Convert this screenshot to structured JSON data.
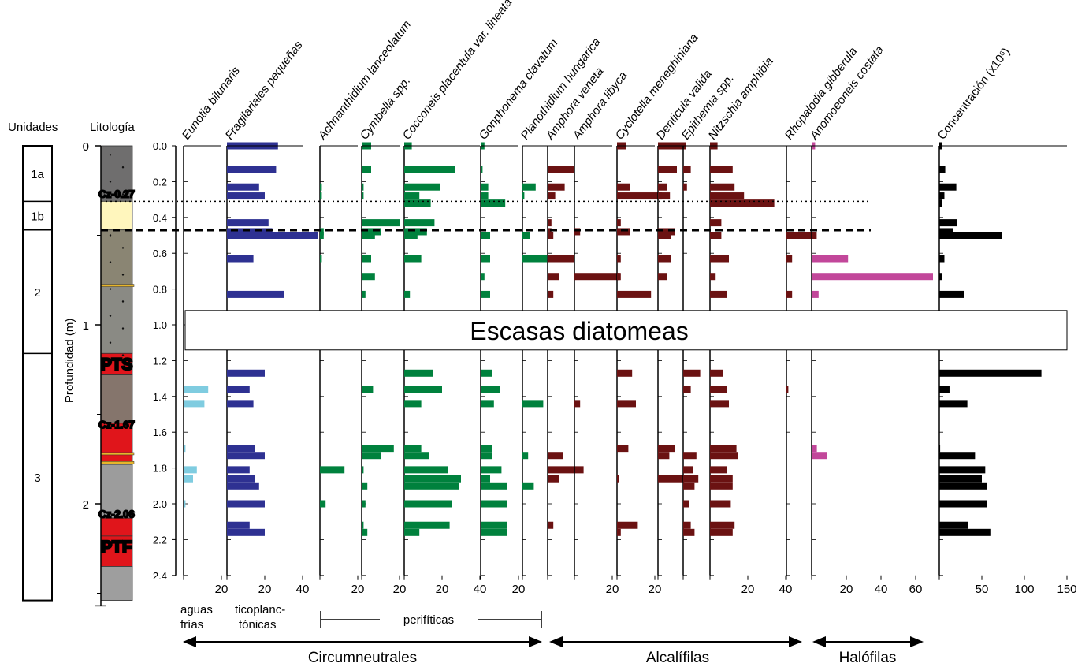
{
  "chart_data": {
    "type": "bar",
    "orientation": "horizontal",
    "depth_axis": {
      "label": "Profundidad (m)",
      "inverted": true,
      "ylim": [
        0,
        2.4
      ],
      "ticks": [
        "0.0",
        "0.2",
        "0.4",
        "0.6",
        "0.8",
        "1.0",
        "1.2",
        "1.4",
        "1.6",
        "1.8",
        "2.0",
        "2.2",
        "2.4"
      ],
      "outer_ticks": [
        "0",
        "1",
        "2"
      ]
    },
    "headers": {
      "units": "Unidades",
      "lithology": "Litología"
    },
    "units": [
      {
        "label": "1a",
        "top": 0.0,
        "bottom": 0.31
      },
      {
        "label": "1b",
        "top": 0.31,
        "bottom": 0.47
      },
      {
        "label": "2",
        "top": 0.47,
        "bottom": 1.16
      },
      {
        "label": "3",
        "top": 1.16,
        "bottom": 2.54
      }
    ],
    "lithology_labels": [
      {
        "text": "Cz-0.27",
        "depth": 0.27
      },
      {
        "text": "PTS",
        "depth": 1.22
      },
      {
        "text": "Cz-1.67",
        "depth": 1.56
      },
      {
        "text": "Cz-2.06",
        "depth": 2.06
      },
      {
        "text": "PTF",
        "depth": 2.24
      }
    ],
    "horizons": [
      0.31,
      0.47
    ],
    "gap_label": "Escasas diatomeas",
    "gap": [
      0.92,
      1.14
    ],
    "depths": [
      0.0,
      0.13,
      0.23,
      0.28,
      0.32,
      0.43,
      0.48,
      0.5,
      0.63,
      0.73,
      0.83,
      1.27,
      1.36,
      1.44,
      1.69,
      1.73,
      1.81,
      1.86,
      1.9,
      2.0,
      2.12,
      2.16
    ],
    "series": [
      {
        "name": "Eunotia bilunaris",
        "values": [
          0,
          0,
          0,
          0,
          0,
          0,
          0,
          0,
          0,
          0,
          0,
          0,
          13,
          11,
          1,
          0,
          7,
          5,
          0,
          1,
          0,
          0
        ]
      },
      {
        "name": "Fragilariales pequeñas",
        "values": [
          27,
          26,
          17,
          20,
          0,
          22,
          24,
          48,
          14,
          0,
          30,
          20,
          12,
          14,
          15,
          20,
          12,
          15,
          17,
          20,
          12,
          20
        ]
      },
      {
        "name": "Achnanthidium lanceolatum",
        "values": [
          0,
          0,
          1,
          1,
          0,
          0,
          2,
          2,
          1,
          0,
          0,
          0,
          0,
          0,
          0,
          0,
          13,
          0,
          0,
          3,
          0,
          0
        ]
      },
      {
        "name": "Cymbella spp.",
        "values": [
          5,
          5,
          1,
          1,
          0,
          20,
          10,
          7,
          5,
          7,
          2,
          0,
          6,
          0,
          17,
          10,
          1,
          0,
          3,
          2,
          1,
          3
        ]
      },
      {
        "name": "Cocconeis placentula var. lineata",
        "values": [
          4,
          27,
          19,
          8,
          14,
          16,
          12,
          7,
          9,
          0,
          3,
          15,
          20,
          9,
          9,
          13,
          23,
          30,
          29,
          25,
          24,
          8
        ]
      },
      {
        "name": "Gonphonema clavatum",
        "values": [
          2,
          1,
          4,
          4,
          13,
          0,
          0,
          5,
          5,
          2,
          5,
          6,
          10,
          7,
          6,
          6,
          11,
          5,
          14,
          14,
          14,
          14
        ]
      },
      {
        "name": "Planothidium hungarica",
        "values": [
          0,
          0,
          7,
          1,
          0,
          0,
          0,
          4,
          13,
          0,
          0,
          0,
          0,
          11,
          0,
          3,
          0,
          0,
          6,
          0,
          0,
          0
        ]
      },
      {
        "name": "Amphora veneta",
        "values": [
          0,
          14,
          9,
          4,
          0,
          2,
          2,
          3,
          14,
          6,
          3,
          0,
          0,
          0,
          0,
          8,
          19,
          6,
          0,
          0,
          3,
          0
        ]
      },
      {
        "name": "Amphora libyca",
        "values": [
          0,
          0,
          0,
          0,
          0,
          0,
          3,
          0,
          0,
          24,
          0,
          0,
          0,
          3,
          0,
          0,
          0,
          0,
          0,
          0,
          0,
          0
        ]
      },
      {
        "name": "Cyclotella meneghiniana",
        "values": [
          5,
          0,
          7,
          28,
          0,
          2,
          7,
          0,
          2,
          2,
          18,
          8,
          0,
          10,
          6,
          0,
          0,
          1,
          0,
          0,
          11,
          2
        ]
      },
      {
        "name": "Denticula valida",
        "values": [
          15,
          10,
          5,
          2,
          0,
          0,
          9,
          7,
          7,
          5,
          0,
          0,
          0,
          0,
          9,
          6,
          0,
          14,
          0,
          0,
          0,
          0
        ]
      },
      {
        "name": "Epithemia spp.",
        "values": [
          0,
          4,
          2,
          0,
          0,
          0,
          0,
          0,
          0,
          0,
          0,
          9,
          4,
          0,
          0,
          7,
          5,
          8,
          6,
          3,
          4,
          6
        ]
      },
      {
        "name": "Nitzschia amphibia",
        "values": [
          4,
          12,
          13,
          18,
          34,
          6,
          0,
          6,
          10,
          3,
          9,
          7,
          9,
          10,
          14,
          15,
          9,
          12,
          12,
          11,
          13,
          12
        ]
      },
      {
        "name": "Rhopalodia gibberula",
        "values": [
          0,
          0,
          0,
          0,
          0,
          0,
          0,
          16,
          3,
          0,
          3,
          0,
          1,
          0,
          0,
          0,
          0,
          0,
          0,
          0,
          0,
          0
        ]
      },
      {
        "name": "Anomoeoneis costata",
        "values": [
          2,
          0,
          0,
          0,
          0,
          0,
          0,
          0,
          21,
          70,
          4,
          0,
          0,
          0,
          3,
          9,
          0,
          0,
          0,
          0,
          0,
          0
        ]
      },
      {
        "name": "Concentración (x10⁶)",
        "values": [
          3,
          7,
          20,
          6,
          3,
          21,
          16,
          74,
          6,
          3,
          29,
          120,
          12,
          33,
          1,
          42,
          54,
          50,
          56,
          56,
          34,
          60
        ]
      }
    ],
    "series_colors": [
      "#7fcce0",
      "#2e3192",
      "#00813d",
      "#00813d",
      "#00813d",
      "#00813d",
      "#00813d",
      "#6b1212",
      "#6b1212",
      "#6b1212",
      "#6b1212",
      "#6b1212",
      "#6b1212",
      "#6b1212",
      "#c2479a",
      "#000000"
    ],
    "x_ticks": [
      [
        "20"
      ],
      [
        "20",
        "40"
      ],
      [
        "20"
      ],
      [
        "20"
      ],
      [
        "20",
        "40"
      ],
      [
        "20"
      ],
      [],
      [],
      [
        "20"
      ],
      [
        "20"
      ],
      [],
      [],
      [
        "20",
        "40"
      ],
      [],
      [
        "20",
        "40",
        "60"
      ],
      [
        "50",
        "100",
        "150"
      ]
    ],
    "group_labels": {
      "aguas": "aguas",
      "frias": "frías",
      "ticoplanc_1": "ticoplanc-",
      "ticoplanc_2": "tónicas",
      "perifiticas": "perifíticas",
      "circumneutrales": "Circumneutrales",
      "alcalifilas": "Alcalífilas",
      "halofilas": "Halófilas"
    }
  }
}
